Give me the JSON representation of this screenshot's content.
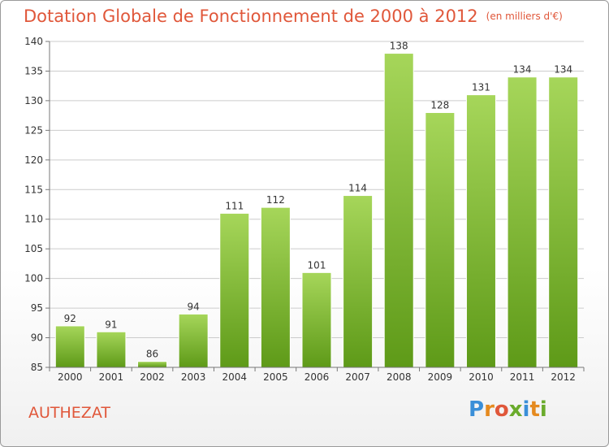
{
  "title": "Dotation Globale de Fonctionnement de 2000 à 2012",
  "unit": "(en milliers d'€)",
  "commune": "AUTHEZAT",
  "logo": "Proxiti",
  "colors": {
    "title": "#e0573a",
    "bar_top": "#a6d65a",
    "bar_bottom": "#5e9a18",
    "grid": "#cccccc",
    "logo": [
      "#3a8fd8",
      "#e58a1f",
      "#e0573a",
      "#6aab2c",
      "#3a8fd8",
      "#e58a1f",
      "#6aab2c"
    ]
  },
  "chart_data": {
    "type": "bar",
    "categories": [
      "2000",
      "2001",
      "2002",
      "2003",
      "2004",
      "2005",
      "2006",
      "2007",
      "2008",
      "2009",
      "2010",
      "2011",
      "2012"
    ],
    "values": [
      92,
      91,
      86,
      94,
      111,
      112,
      101,
      114,
      138,
      128,
      131,
      134,
      134
    ],
    "data_labels": [
      "92",
      "91",
      "86",
      "94",
      "111",
      "112",
      "101",
      "114",
      "138",
      "128",
      "131",
      "134",
      "134"
    ],
    "title": "Dotation Globale de Fonctionnement de 2000 à 2012",
    "xlabel": "",
    "ylabel": "",
    "ylim": [
      85,
      140
    ],
    "yticks": [
      85,
      90,
      95,
      100,
      105,
      110,
      115,
      120,
      125,
      130,
      135,
      140
    ],
    "grid": true,
    "legend": "none"
  }
}
